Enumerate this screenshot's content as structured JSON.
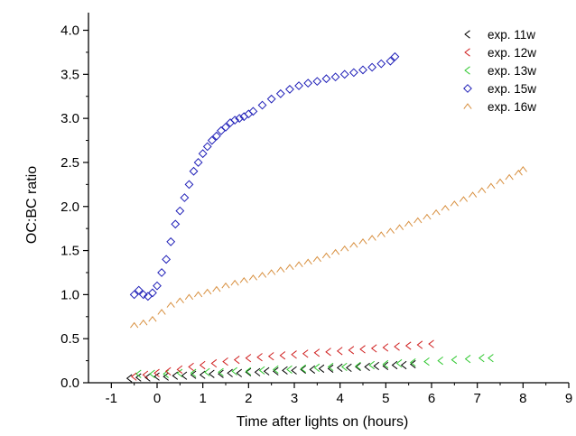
{
  "chart_data": {
    "type": "scatter",
    "title": "",
    "xlabel": "Time after lights on (hours)",
    "ylabel": "OC:BC ratio",
    "xlim": [
      -1.5,
      9
    ],
    "ylim": [
      0,
      4.2
    ],
    "xticks": [
      -1,
      0,
      1,
      2,
      3,
      4,
      5,
      6,
      7,
      8,
      9
    ],
    "yticks": [
      0.0,
      0.5,
      1.0,
      1.5,
      2.0,
      2.5,
      3.0,
      3.5,
      4.0
    ],
    "ytick_labels": [
      "0.0",
      "0.5",
      "1.0",
      "1.5",
      "2.0",
      "2.5",
      "3.0",
      "3.5",
      "4.0"
    ],
    "grid": false,
    "legend_position": "top-right",
    "series": [
      {
        "name": "exp. 11w",
        "marker": "triangle-left",
        "color": "#000000",
        "x": [
          -0.6,
          -0.4,
          -0.2,
          0.0,
          0.2,
          0.4,
          0.6,
          0.8,
          1.0,
          1.2,
          1.4,
          1.6,
          1.8,
          2.0,
          2.2,
          2.4,
          2.6,
          2.8,
          3.0,
          3.2,
          3.4,
          3.6,
          3.8,
          4.0,
          4.2,
          4.4,
          4.6,
          4.8,
          5.0,
          5.2,
          5.4,
          5.6
        ],
        "y": [
          0.05,
          0.06,
          0.06,
          0.07,
          0.07,
          0.08,
          0.08,
          0.09,
          0.09,
          0.1,
          0.1,
          0.11,
          0.11,
          0.12,
          0.12,
          0.13,
          0.13,
          0.14,
          0.14,
          0.15,
          0.15,
          0.16,
          0.16,
          0.17,
          0.17,
          0.18,
          0.18,
          0.19,
          0.19,
          0.2,
          0.2,
          0.21
        ]
      },
      {
        "name": "exp. 12w",
        "marker": "triangle-left",
        "color": "#d02020",
        "x": [
          -0.5,
          -0.25,
          0.0,
          0.25,
          0.5,
          0.75,
          1.0,
          1.25,
          1.5,
          1.75,
          2.0,
          2.25,
          2.5,
          2.75,
          3.0,
          3.25,
          3.5,
          3.75,
          4.0,
          4.25,
          4.5,
          4.75,
          5.0,
          5.25,
          5.5,
          5.75,
          6.0
        ],
        "y": [
          0.07,
          0.09,
          0.11,
          0.13,
          0.15,
          0.18,
          0.2,
          0.22,
          0.24,
          0.26,
          0.28,
          0.29,
          0.3,
          0.31,
          0.32,
          0.33,
          0.34,
          0.35,
          0.36,
          0.37,
          0.38,
          0.39,
          0.4,
          0.41,
          0.42,
          0.43,
          0.44
        ]
      },
      {
        "name": "exp. 13w",
        "marker": "triangle-left",
        "color": "#30c830",
        "x": [
          -0.4,
          -0.1,
          0.2,
          0.5,
          0.8,
          1.1,
          1.4,
          1.7,
          2.0,
          2.3,
          2.6,
          2.9,
          3.2,
          3.5,
          3.8,
          4.1,
          4.4,
          4.7,
          5.0,
          5.3,
          5.6,
          5.9,
          6.2,
          6.5,
          6.8,
          7.1,
          7.3
        ],
        "y": [
          0.1,
          0.1,
          0.1,
          0.11,
          0.11,
          0.12,
          0.12,
          0.13,
          0.13,
          0.14,
          0.15,
          0.15,
          0.16,
          0.17,
          0.18,
          0.18,
          0.19,
          0.2,
          0.21,
          0.22,
          0.23,
          0.24,
          0.25,
          0.26,
          0.27,
          0.28,
          0.28
        ]
      },
      {
        "name": "exp. 15w",
        "marker": "diamond",
        "color": "#2020b8",
        "x": [
          -0.5,
          -0.4,
          -0.3,
          -0.2,
          -0.1,
          0.0,
          0.1,
          0.2,
          0.3,
          0.4,
          0.5,
          0.6,
          0.7,
          0.8,
          0.9,
          1.0,
          1.1,
          1.2,
          1.3,
          1.4,
          1.5,
          1.6,
          1.7,
          1.8,
          1.9,
          2.0,
          2.1,
          2.3,
          2.5,
          2.7,
          2.9,
          3.1,
          3.3,
          3.5,
          3.7,
          3.9,
          4.1,
          4.3,
          4.5,
          4.7,
          4.9,
          5.1,
          5.2
        ],
        "y": [
          1.0,
          1.05,
          1.0,
          0.98,
          1.02,
          1.1,
          1.25,
          1.4,
          1.6,
          1.8,
          1.95,
          2.1,
          2.25,
          2.4,
          2.5,
          2.6,
          2.68,
          2.75,
          2.8,
          2.86,
          2.9,
          2.95,
          2.98,
          3.0,
          3.02,
          3.05,
          3.08,
          3.15,
          3.22,
          3.28,
          3.33,
          3.37,
          3.4,
          3.42,
          3.45,
          3.47,
          3.5,
          3.52,
          3.55,
          3.58,
          3.62,
          3.65,
          3.7
        ]
      },
      {
        "name": "exp. 16w",
        "marker": "triangle-up",
        "color": "#d89040",
        "x": [
          -0.5,
          -0.3,
          -0.1,
          0.1,
          0.3,
          0.5,
          0.7,
          0.9,
          1.1,
          1.3,
          1.5,
          1.7,
          1.9,
          2.1,
          2.3,
          2.5,
          2.7,
          2.9,
          3.1,
          3.3,
          3.5,
          3.7,
          3.9,
          4.1,
          4.3,
          4.5,
          4.7,
          4.9,
          5.1,
          5.3,
          5.5,
          5.7,
          5.9,
          6.1,
          6.3,
          6.5,
          6.7,
          6.9,
          7.1,
          7.3,
          7.5,
          7.7,
          7.9,
          8.0
        ],
        "y": [
          0.65,
          0.68,
          0.72,
          0.8,
          0.88,
          0.93,
          0.97,
          1.0,
          1.03,
          1.06,
          1.1,
          1.13,
          1.16,
          1.19,
          1.22,
          1.25,
          1.28,
          1.31,
          1.34,
          1.37,
          1.4,
          1.44,
          1.48,
          1.52,
          1.56,
          1.6,
          1.64,
          1.68,
          1.72,
          1.76,
          1.8,
          1.84,
          1.88,
          1.93,
          1.98,
          2.03,
          2.08,
          2.13,
          2.18,
          2.23,
          2.28,
          2.33,
          2.38,
          2.42
        ]
      }
    ]
  }
}
